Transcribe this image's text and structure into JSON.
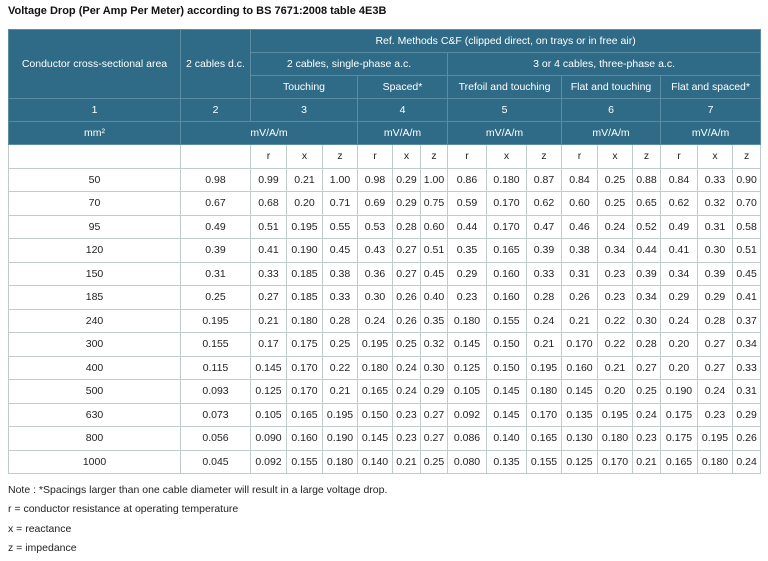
{
  "title": "Voltage Drop (Per Amp Per Meter) according to BS 7671:2008 table 4E3B",
  "header": {
    "col1": "Conductor cross-sectional area",
    "col2": "2 cables d.c.",
    "ref_methods": "Ref. Methods C&F (clipped direct, on trays or in free air)",
    "single_phase": "2 cables, single-phase a.c.",
    "three_phase": "3 or 4 cables, three-phase a.c.",
    "touching": "Touching",
    "spaced": "Spaced*",
    "trefoil": "Trefoil and touching",
    "flat_touching": "Flat and touching",
    "flat_spaced": "Flat and spaced*",
    "numbers": [
      "1",
      "2",
      "3",
      "4",
      "5",
      "6",
      "7"
    ],
    "unit_area": "mm²",
    "unit_vd": "mV/A/m",
    "rxz": [
      "r",
      "x",
      "z"
    ]
  },
  "rows": [
    [
      "50",
      "0.98",
      "0.99",
      "0.21",
      "1.00",
      "0.98",
      "0.29",
      "1.00",
      "0.86",
      "0.180",
      "0.87",
      "0.84",
      "0.25",
      "0.88",
      "0.84",
      "0.33",
      "0.90"
    ],
    [
      "70",
      "0.67",
      "0.68",
      "0.20",
      "0.71",
      "0.69",
      "0.29",
      "0.75",
      "0.59",
      "0.170",
      "0.62",
      "0.60",
      "0.25",
      "0.65",
      "0.62",
      "0.32",
      "0.70"
    ],
    [
      "95",
      "0.49",
      "0.51",
      "0.195",
      "0.55",
      "0.53",
      "0.28",
      "0.60",
      "0.44",
      "0.170",
      "0.47",
      "0.46",
      "0.24",
      "0.52",
      "0.49",
      "0.31",
      "0.58"
    ],
    [
      "120",
      "0.39",
      "0.41",
      "0.190",
      "0.45",
      "0.43",
      "0.27",
      "0.51",
      "0.35",
      "0.165",
      "0.39",
      "0.38",
      "0.34",
      "0.44",
      "0.41",
      "0.30",
      "0.51"
    ],
    [
      "150",
      "0.31",
      "0.33",
      "0.185",
      "0.38",
      "0.36",
      "0.27",
      "0.45",
      "0.29",
      "0.160",
      "0.33",
      "0.31",
      "0.23",
      "0.39",
      "0.34",
      "0.39",
      "0.45"
    ],
    [
      "185",
      "0.25",
      "0.27",
      "0.185",
      "0.33",
      "0.30",
      "0.26",
      "0.40",
      "0.23",
      "0.160",
      "0.28",
      "0.26",
      "0.23",
      "0.34",
      "0.29",
      "0.29",
      "0.41"
    ],
    [
      "240",
      "0.195",
      "0.21",
      "0.180",
      "0.28",
      "0.24",
      "0.26",
      "0.35",
      "0.180",
      "0.155",
      "0.24",
      "0.21",
      "0.22",
      "0.30",
      "0.24",
      "0.28",
      "0.37"
    ],
    [
      "300",
      "0.155",
      "0.17",
      "0.175",
      "0.25",
      "0.195",
      "0.25",
      "0.32",
      "0.145",
      "0.150",
      "0.21",
      "0.170",
      "0.22",
      "0.28",
      "0.20",
      "0.27",
      "0.34"
    ],
    [
      "400",
      "0.115",
      "0.145",
      "0.170",
      "0.22",
      "0.180",
      "0.24",
      "0.30",
      "0.125",
      "0.150",
      "0.195",
      "0.160",
      "0.21",
      "0.27",
      "0.20",
      "0.27",
      "0.33"
    ],
    [
      "500",
      "0.093",
      "0.125",
      "0.170",
      "0.21",
      "0.165",
      "0.24",
      "0.29",
      "0.105",
      "0.145",
      "0.180",
      "0.145",
      "0.20",
      "0.25",
      "0.190",
      "0.24",
      "0.31"
    ],
    [
      "630",
      "0.073",
      "0.105",
      "0.165",
      "0.195",
      "0.150",
      "0.23",
      "0.27",
      "0.092",
      "0.145",
      "0.170",
      "0.135",
      "0.195",
      "0.24",
      "0.175",
      "0.23",
      "0.29"
    ],
    [
      "800",
      "0.056",
      "0.090",
      "0.160",
      "0.190",
      "0.145",
      "0.23",
      "0.27",
      "0.086",
      "0.140",
      "0.165",
      "0.130",
      "0.180",
      "0.23",
      "0.175",
      "0.195",
      "0.26"
    ],
    [
      "1000",
      "0.045",
      "0.092",
      "0.155",
      "0.180",
      "0.140",
      "0.21",
      "0.25",
      "0.080",
      "0.135",
      "0.155",
      "0.125",
      "0.170",
      "0.21",
      "0.165",
      "0.180",
      "0.24"
    ]
  ],
  "notes": [
    "Note : *Spacings larger than one cable diameter will result in a large voltage drop.",
    "r = conductor resistance at operating temperature",
    "x = reactance",
    "z = impedance"
  ],
  "colors": {
    "header_bg": "#2f6b87",
    "header_text": "#ffffff",
    "grid": "#c3cccc"
  }
}
